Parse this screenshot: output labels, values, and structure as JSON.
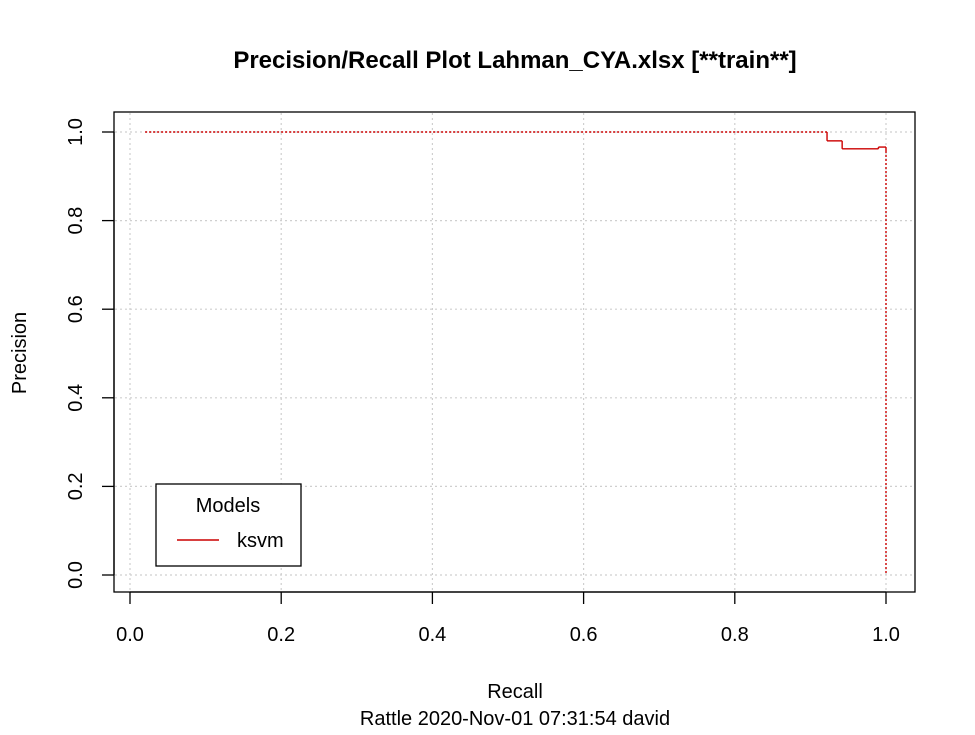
{
  "chart_data": {
    "type": "line",
    "title": "Precision/Recall Plot  Lahman_CYA.xlsx [**train**]",
    "xlabel": "Recall",
    "ylabel": "Precision",
    "subtitle": "Rattle 2020-Nov-01 07:31:54 david",
    "xlim": [
      0.0,
      1.0
    ],
    "ylim": [
      0.0,
      1.0
    ],
    "x_ticks": [
      "0.0",
      "0.2",
      "0.4",
      "0.6",
      "0.8",
      "1.0"
    ],
    "y_ticks": [
      "0.0",
      "0.2",
      "0.4",
      "0.6",
      "0.8",
      "1.0"
    ],
    "grid": true,
    "legend": {
      "title": "Models",
      "position": "bottom-left"
    },
    "series": [
      {
        "name": "ksvm",
        "color": "#cc0000",
        "points": [
          {
            "x": 0.02,
            "y": 1.0,
            "style": "dotted"
          },
          {
            "x": 0.922,
            "y": 1.0,
            "style": "solid"
          },
          {
            "x": 0.922,
            "y": 0.98,
            "style": "solid"
          },
          {
            "x": 0.942,
            "y": 0.98,
            "style": "solid"
          },
          {
            "x": 0.942,
            "y": 0.962,
            "style": "solid"
          },
          {
            "x": 0.99,
            "y": 0.962,
            "style": "solid"
          },
          {
            "x": 0.99,
            "y": 0.966,
            "style": "solid"
          },
          {
            "x": 1.0,
            "y": 0.966,
            "style": "solid"
          },
          {
            "x": 1.0,
            "y": 0.957,
            "style": "dotted"
          },
          {
            "x": 1.0,
            "y": 0.0,
            "style": "dotted"
          }
        ]
      }
    ]
  }
}
